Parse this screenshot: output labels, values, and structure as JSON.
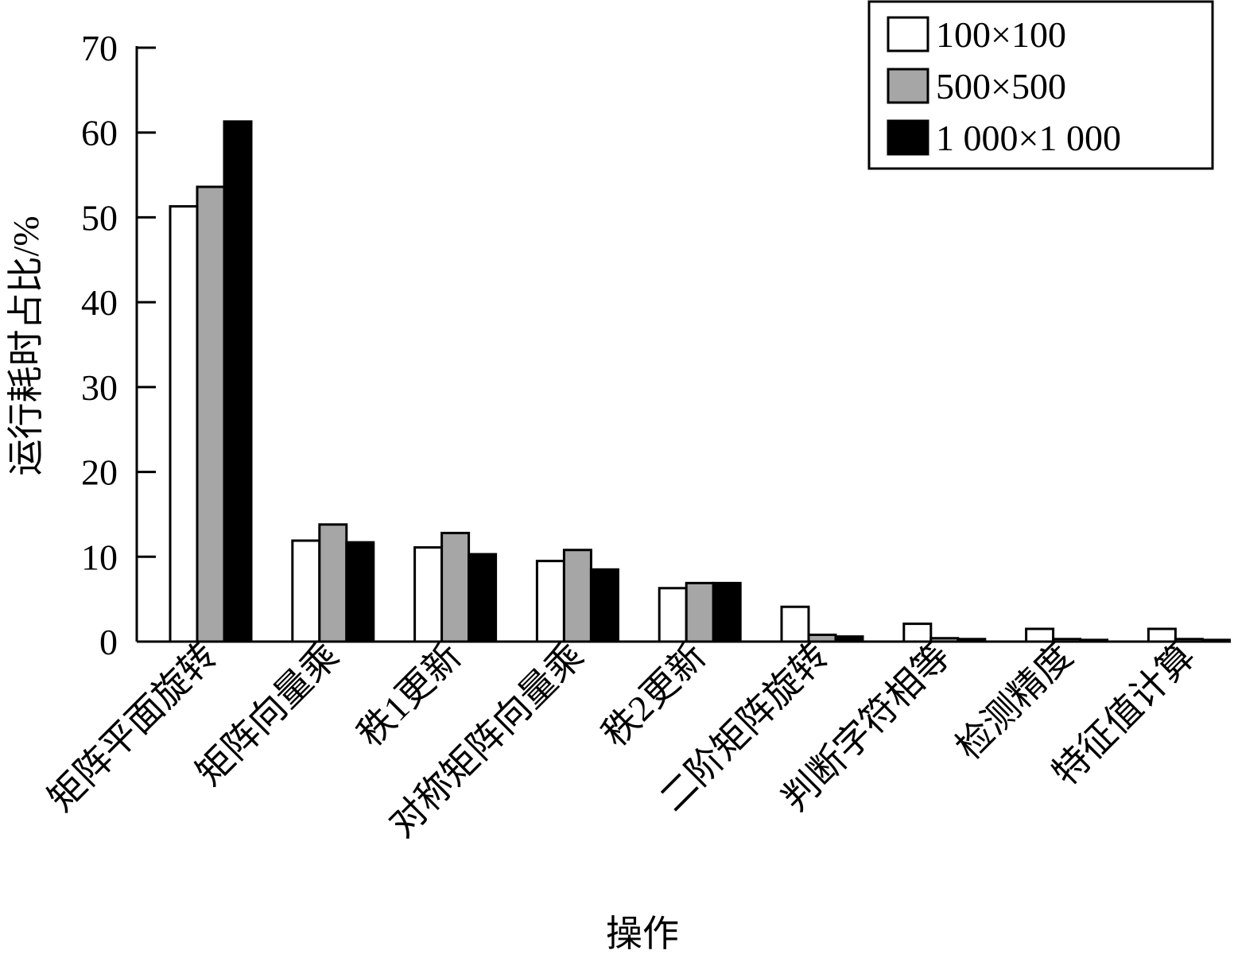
{
  "chart_data": {
    "type": "bar",
    "xlabel": "操作",
    "ylabel": "运行耗时占比/%",
    "ylim": [
      0,
      70
    ],
    "yticks": [
      0,
      10,
      20,
      30,
      40,
      50,
      60,
      70
    ],
    "categories": [
      "矩阵平面旋转",
      "矩阵向量乘",
      "秩1更新",
      "对称矩阵向量乘",
      "秩2更新",
      "二阶矩阵旋转",
      "判断字符相等",
      "检测精度",
      "特征值计算"
    ],
    "series": [
      {
        "name": "100×100",
        "color": "#ffffff",
        "values": [
          51.3,
          11.9,
          11.1,
          9.5,
          6.3,
          4.1,
          2.1,
          1.5,
          1.5
        ]
      },
      {
        "name": "500×500",
        "color": "#a6a6a6",
        "values": [
          53.6,
          13.8,
          12.8,
          10.8,
          6.9,
          0.8,
          0.4,
          0.3,
          0.3
        ]
      },
      {
        "name": "1 000×1 000",
        "color": "#000000",
        "values": [
          61.3,
          11.7,
          10.3,
          8.5,
          6.9,
          0.6,
          0.3,
          0.2,
          0.2
        ]
      }
    ],
    "legend_position": "top-right",
    "grid": false
  }
}
